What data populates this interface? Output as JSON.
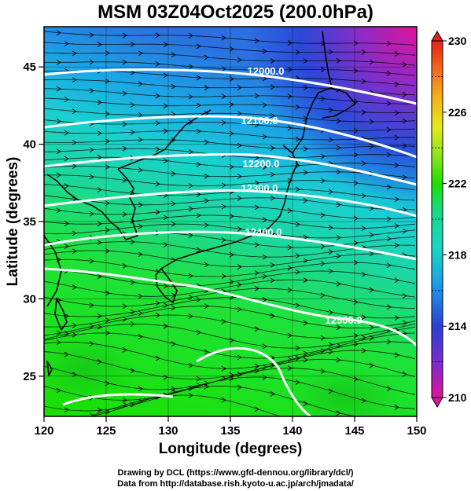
{
  "title": "MSM 03Z04Oct2025 (200.0hPa)",
  "axes": {
    "xlabel": "Longitude (degrees)",
    "ylabel": "Latitude  (degrees)",
    "xlim": [
      120,
      150
    ],
    "ylim": [
      22.4,
      47.6
    ],
    "xticks": [
      "120",
      "125",
      "130",
      "135",
      "140",
      "145",
      "150"
    ],
    "yticks": [
      "25",
      "30",
      "35",
      "40",
      "45"
    ]
  },
  "colorbar": {
    "min": 210,
    "max": 230,
    "ticks": [
      "230",
      "226",
      "222",
      "218",
      "214",
      "210"
    ],
    "colors": [
      "#e0149b",
      "#7a2cd0",
      "#2b3fd6",
      "#1aa0e6",
      "#18d6c4",
      "#16d98a",
      "#1ee000",
      "#8fe51a",
      "#e8e81a",
      "#f5b21a",
      "#f06a1a",
      "#e8201a"
    ]
  },
  "contours": {
    "labels": [
      "12000.0",
      "12100.0",
      "12200.0",
      "12300.0",
      "12400.0",
      "12500.0"
    ]
  },
  "credits": {
    "line1": "Drawing by DCL (https://www.gfd-dennou.org/library/dcl/)",
    "line2": "Data from http://database.rish.kyoto-u.ac.jp/arch/jmadata/"
  }
}
